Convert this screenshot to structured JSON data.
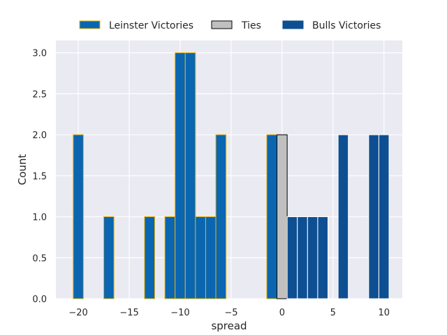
{
  "chart_data": {
    "type": "bar",
    "subtype": "histogram",
    "xlabel": "spread",
    "ylabel": "Count",
    "xlim": [
      -22.2,
      11.8
    ],
    "ylim": [
      0,
      3.15
    ],
    "grid": true,
    "legend_placement": "top-center",
    "xticks": [
      -20,
      -15,
      -10,
      -5,
      0,
      5,
      10
    ],
    "xtick_labels": [
      "−20",
      "−15",
      "−10",
      "−5",
      "0",
      "5",
      "10"
    ],
    "yticks": [
      0,
      0.5,
      1,
      1.5,
      2,
      2.5,
      3
    ],
    "ytick_labels": [
      "0.0",
      "0.5",
      "1.0",
      "1.5",
      "2.0",
      "2.5",
      "3.0"
    ],
    "bin_width": 1,
    "series": [
      {
        "name": "Leinster Victories",
        "fill": "#0a66b0",
        "edge": "#e3b20f",
        "bins": [
          {
            "x": -20,
            "count": 2
          },
          {
            "x": -17,
            "count": 1
          },
          {
            "x": -13,
            "count": 1
          },
          {
            "x": -11,
            "count": 1
          },
          {
            "x": -10,
            "count": 3
          },
          {
            "x": -9,
            "count": 3
          },
          {
            "x": -8,
            "count": 1
          },
          {
            "x": -7,
            "count": 1
          },
          {
            "x": -6,
            "count": 2
          },
          {
            "x": -1,
            "count": 2
          }
        ]
      },
      {
        "name": "Ties",
        "fill": "#c0c0c0",
        "edge": "#000000",
        "bins": [
          {
            "x": 0,
            "count": 2
          }
        ]
      },
      {
        "name": "Bulls Victories",
        "fill": "#0e4f92",
        "edge": "#ffffff",
        "bins": [
          {
            "x": 1,
            "count": 1
          },
          {
            "x": 2,
            "count": 1
          },
          {
            "x": 3,
            "count": 1
          },
          {
            "x": 4,
            "count": 1
          },
          {
            "x": 6,
            "count": 2
          },
          {
            "x": 9,
            "count": 2
          },
          {
            "x": 10,
            "count": 2
          }
        ]
      }
    ]
  }
}
